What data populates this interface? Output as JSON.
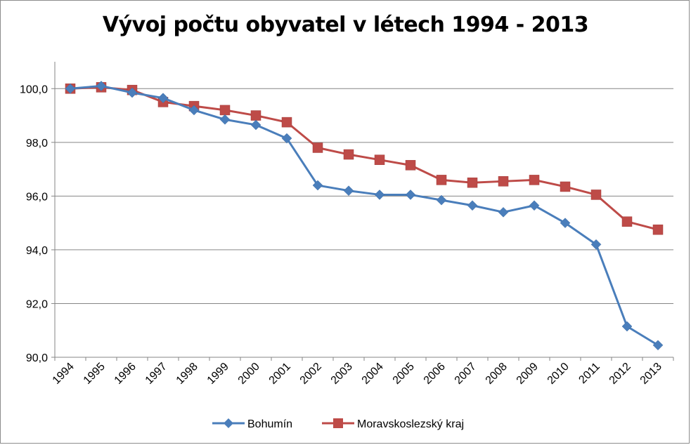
{
  "chart_data": {
    "type": "line",
    "title": "Vývoj počtu obyvatel v létech 1994 - 2013",
    "xlabel": "",
    "ylabel": "",
    "categories": [
      "1994",
      "1995",
      "1996",
      "1997",
      "1998",
      "1999",
      "2000",
      "2001",
      "2002",
      "2003",
      "2004",
      "2005",
      "2006",
      "2007",
      "2008",
      "2009",
      "2010",
      "2011",
      "2012",
      "2013"
    ],
    "ylim": [
      90,
      101
    ],
    "yticks": [
      90,
      92,
      94,
      96,
      98,
      100
    ],
    "ytick_labels": [
      "90,0",
      "92,0",
      "94,0",
      "96,0",
      "98,0",
      "100,0"
    ],
    "grid": true,
    "legend_position": "bottom",
    "series": [
      {
        "name": "Bohumín",
        "color": "#4a7ebb",
        "marker": "diamond",
        "values": [
          100.0,
          100.1,
          99.85,
          99.65,
          99.2,
          98.85,
          98.65,
          98.15,
          96.4,
          96.2,
          96.05,
          96.05,
          95.85,
          95.65,
          95.4,
          95.65,
          95.0,
          94.2,
          91.15,
          90.45
        ]
      },
      {
        "name": "Moravskoslezský kraj",
        "color": "#be4b48",
        "marker": "square",
        "values": [
          100.0,
          100.05,
          99.95,
          99.5,
          99.35,
          99.2,
          99.0,
          98.75,
          97.8,
          97.55,
          97.35,
          97.15,
          96.6,
          96.5,
          96.55,
          96.6,
          96.35,
          96.05,
          95.05,
          94.75
        ]
      }
    ]
  }
}
